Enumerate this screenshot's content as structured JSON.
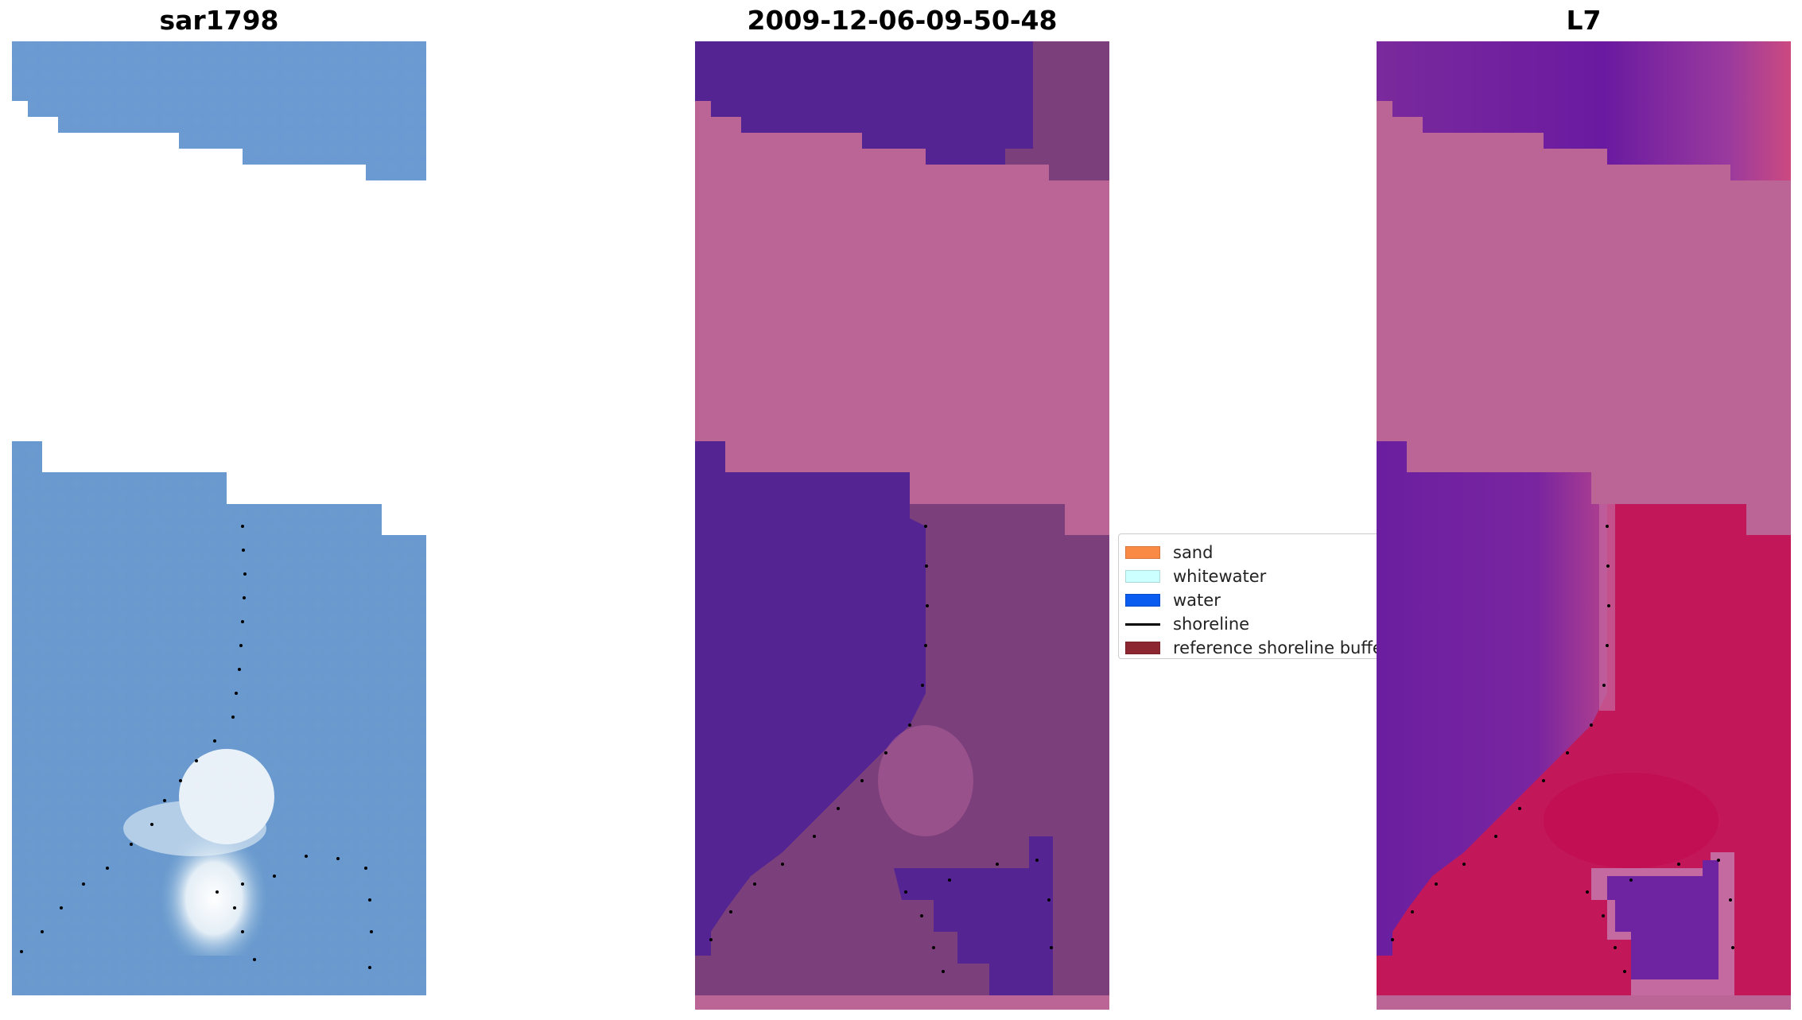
{
  "panels": [
    {
      "title": "sar1798",
      "image": "sar-rgb-image"
    },
    {
      "title": "2009-12-06-09-50-48",
      "image": "classified-overlay-image"
    },
    {
      "title": "L7",
      "image": "l7-index-image"
    }
  ],
  "legend": {
    "items": [
      {
        "label": "sand",
        "color": "#f98a45"
      },
      {
        "label": "whitewater",
        "color": "#ccffff"
      },
      {
        "label": "water",
        "color": "#0a5cf0"
      },
      {
        "label": "shoreline",
        "color": "#000000"
      },
      {
        "label": "reference shoreline buffer",
        "color": "#8c2630"
      }
    ]
  },
  "colors": {
    "rgb_blue": "#6495c8",
    "overlay_water": "#552493",
    "overlay_land": "#7b3f7c",
    "masked_pink": "#bb6596",
    "l7_water": "#6a1fa0",
    "l7_land": "#c2185a"
  }
}
